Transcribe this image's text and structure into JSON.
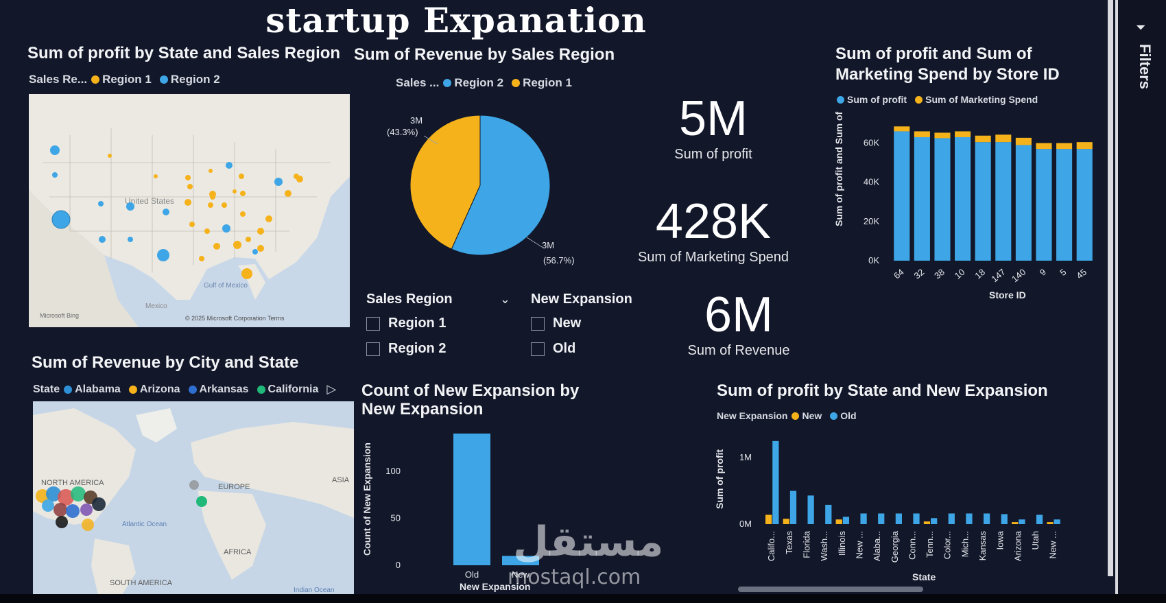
{
  "page_title": "startup Expanation",
  "filters_label": "Filters",
  "colors": {
    "region1": "#f5b21b",
    "region2": "#3ea6e6",
    "alabama": "#2e8fd6",
    "arizona": "#f5b21b",
    "arkansas": "#2f6fd0",
    "california": "#20b97a",
    "background": "#12172a"
  },
  "map1": {
    "title": "Sum of profit by State and Sales Region",
    "legend_label": "Sales Re...",
    "legend_items": [
      {
        "label": "Region 1",
        "color": "#f5b21b"
      },
      {
        "label": "Region 2",
        "color": "#3ea6e6"
      }
    ],
    "place_labels": [
      "United States",
      "Gulf of Mexico",
      "Mexico"
    ],
    "attribution_left": "Microsoft Bing",
    "attribution_right": "© 2025 Microsoft Corporation Terms"
  },
  "pie": {
    "title": "Sum of Revenue by Sales Region",
    "legend_label": "Sales ...",
    "legend_items": [
      {
        "label": "Region 2",
        "color": "#3ea6e6"
      },
      {
        "label": "Region 1",
        "color": "#f5b21b"
      }
    ],
    "slice_labels": [
      {
        "value": "3M",
        "pct": "(43.3%)"
      },
      {
        "value": "3M",
        "pct": "(56.7%)"
      }
    ]
  },
  "kpis": [
    {
      "value": "5M",
      "label": "Sum of profit"
    },
    {
      "value": "428K",
      "label": "Sum of Marketing Spend"
    },
    {
      "value": "6M",
      "label": "Sum of Revenue"
    }
  ],
  "slicers": [
    {
      "title": "Sales Region",
      "chevron": "chevron-down-icon",
      "options": [
        "Region 1",
        "Region 2"
      ]
    },
    {
      "title": "New Expansion",
      "options": [
        "New",
        "Old"
      ]
    }
  ],
  "map2": {
    "title": "Sum of Revenue by City and State",
    "legend_label": "State",
    "legend_items": [
      {
        "label": "Alabama",
        "color": "#2e8fd6"
      },
      {
        "label": "Arizona",
        "color": "#f5b21b"
      },
      {
        "label": "Arkansas",
        "color": "#2f6fd0"
      },
      {
        "label": "California",
        "color": "#20b97a"
      }
    ],
    "legend_more": "▷",
    "place_labels": [
      "NORTH AMERICA",
      "EUROPE",
      "ASIA",
      "Atlantic Ocean",
      "AFRICA",
      "SOUTH AMERICA",
      "Indian Ocean"
    ]
  },
  "watermark": {
    "arabic": "مستقل",
    "latin": "mostaql.com"
  },
  "chart_data": [
    {
      "type": "bar",
      "stacked": true,
      "title": "Sum of profit and Sum of Marketing Spend by Store ID",
      "xlabel": "Store ID",
      "ylabel": "Sum of profit and Sum of ...",
      "categories": [
        "64",
        "32",
        "38",
        "10",
        "18",
        "147",
        "140",
        "9",
        "5",
        "45"
      ],
      "series": [
        {
          "name": "Sum of profit",
          "color": "#3ea6e6",
          "values": [
            66000,
            63000,
            62500,
            63000,
            60500,
            60500,
            59000,
            57000,
            57000,
            57000
          ]
        },
        {
          "name": "Sum of Marketing Spend",
          "color": "#f5b21b",
          "values": [
            2500,
            3000,
            2800,
            3000,
            3300,
            3800,
            3700,
            3000,
            3000,
            3500
          ]
        }
      ],
      "yticks": [
        "0K",
        "20K",
        "40K",
        "60K"
      ],
      "ylim": [
        0,
        70000
      ],
      "legend": "top-left"
    },
    {
      "type": "bar",
      "title": "Count of New Expansion by New Expansion",
      "xlabel": "New Expansion",
      "ylabel": "Count of New Expansion",
      "categories": [
        "Old",
        "New"
      ],
      "values": [
        140,
        10
      ],
      "yticks": [
        "0",
        "50",
        "100"
      ],
      "ylim": [
        0,
        140
      ],
      "color": "#3ea6e6"
    },
    {
      "type": "bar",
      "title": "Sum of profit by State and New Expansion",
      "xlabel": "State",
      "ylabel": "Sum of profit",
      "legend_label": "New Expansion",
      "categories": [
        "Califo...",
        "Texas",
        "Florida",
        "Wash...",
        "Illinois",
        "New ...",
        "Alaba...",
        "Georgia",
        "Conn...",
        "Tenn...",
        "Color...",
        "Mich...",
        "Kansas",
        "Iowa",
        "Arizona",
        "Utah",
        "New ..."
      ],
      "series": [
        {
          "name": "New",
          "color": "#f5b21b",
          "values": [
            140000,
            80000,
            0,
            0,
            70000,
            0,
            0,
            0,
            0,
            40000,
            0,
            0,
            0,
            0,
            30000,
            0,
            30000
          ]
        },
        {
          "name": "Old",
          "color": "#3ea6e6",
          "values": [
            1250000,
            500000,
            430000,
            290000,
            110000,
            160000,
            160000,
            160000,
            160000,
            90000,
            160000,
            160000,
            160000,
            150000,
            70000,
            140000,
            70000
          ]
        }
      ],
      "yticks": [
        "0M",
        "1M"
      ],
      "ylim": [
        0,
        1300000
      ],
      "legend": "top-left"
    }
  ]
}
